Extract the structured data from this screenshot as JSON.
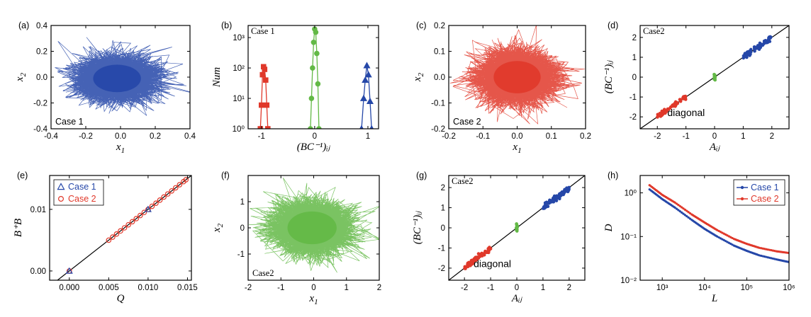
{
  "colors": {
    "blue": "#2547a8",
    "red": "#e0382a",
    "green": "#63b946",
    "axis": "#000000"
  },
  "chart_data": [
    {
      "id": "a",
      "type": "scatter",
      "render": "cloud",
      "color": "blue",
      "panel_label": "(a)",
      "case_label": "Case 1",
      "xlabel": "x",
      "xlabel_sub": "1",
      "ylabel": "x",
      "ylabel_sub": "2",
      "xlim": [
        -0.4,
        0.4
      ],
      "ylim": [
        -0.4,
        0.4
      ],
      "xticks": [
        -0.4,
        -0.2,
        0.0,
        0.2,
        0.4
      ],
      "xtick_labels": [
        "-0.4",
        "-0.2",
        "0.0",
        "0.2",
        "0.4"
      ],
      "yticks": [
        -0.4,
        -0.2,
        0.0,
        0.2,
        0.4
      ],
      "ytick_labels": [
        "-0.4",
        "-0.2",
        "0.0",
        "0.2",
        "0.4"
      ],
      "cloud": {
        "cx": -0.02,
        "cy": -0.01,
        "sx": 0.11,
        "sy": 0.085,
        "n": 4000,
        "seed": 11
      }
    },
    {
      "id": "b",
      "type": "line",
      "render": "series",
      "panel_label": "(b)",
      "case_label": "Case 1",
      "xlabel": "(BC⁻¹)ᵢⱼ",
      "ylabel": "Num",
      "yscale": "log",
      "xlim": [
        -1.25,
        1.2
      ],
      "ylim": [
        1,
        2500
      ],
      "xticks": [
        -1,
        0,
        1
      ],
      "xtick_labels": [
        "-1",
        "0",
        "1"
      ],
      "yticks": [
        1,
        10,
        100,
        1000
      ],
      "ytick_labels": [
        "10⁰",
        "10¹",
        "10²",
        "10³"
      ],
      "series": [
        {
          "name": "negative",
          "color": "red",
          "marker": "square",
          "x": [
            -1.02,
            -1.0,
            -0.98,
            -0.96,
            -0.94,
            -0.92,
            -0.9,
            -0.88
          ],
          "y": [
            1,
            6,
            60,
            110,
            90,
            40,
            6,
            1
          ]
        },
        {
          "name": "zero",
          "color": "green",
          "marker": "circle",
          "x": [
            -0.08,
            -0.06,
            -0.04,
            -0.02,
            0.0,
            0.02,
            0.04,
            0.06,
            0.08
          ],
          "y": [
            1,
            10,
            100,
            700,
            1900,
            1500,
            300,
            30,
            1
          ]
        },
        {
          "name": "positive",
          "color": "blue",
          "marker": "triangle",
          "x": [
            0.88,
            0.92,
            0.95,
            0.98,
            1.01,
            1.04,
            1.07
          ],
          "y": [
            1,
            10,
            40,
            120,
            60,
            8,
            1
          ]
        }
      ]
    },
    {
      "id": "c",
      "type": "scatter",
      "render": "cloud",
      "color": "red",
      "panel_label": "(c)",
      "case_label": "Case 2",
      "xlabel": "x",
      "xlabel_sub": "1",
      "ylabel": "x",
      "ylabel_sub": "2",
      "xlim": [
        -0.2,
        0.2
      ],
      "ylim": [
        -0.2,
        0.2
      ],
      "xticks": [
        -0.2,
        -0.1,
        0.0,
        0.1,
        0.2
      ],
      "xtick_labels": [
        "-0.2",
        "-0.1",
        "0.0",
        "0.1",
        "0.2"
      ],
      "yticks": [
        -0.2,
        -0.1,
        0.0,
        0.1,
        0.2
      ],
      "ytick_labels": [
        "-0.2",
        "-0.1",
        "0.0",
        "0.1",
        "0.2"
      ],
      "cloud": {
        "cx": 0.0,
        "cy": 0.0,
        "sx": 0.055,
        "sy": 0.05,
        "n": 4000,
        "seed": 22
      }
    },
    {
      "id": "d",
      "type": "scatter",
      "render": "diag",
      "panel_label": "(d)",
      "case_label": "Case2",
      "annotation": "diagonal",
      "xlabel": "Aᵢⱼ",
      "ylabel": "(BC⁻¹)ᵢⱼ",
      "xlim": [
        -2.6,
        2.6
      ],
      "ylim": [
        -2.6,
        2.6
      ],
      "xticks": [
        -2,
        -1,
        0,
        1,
        2
      ],
      "xtick_labels": [
        "-2",
        "-1",
        "0",
        "1",
        "2"
      ],
      "yticks": [
        -2,
        -1,
        0,
        1,
        2
      ],
      "ytick_labels": [
        "-2",
        "-1",
        "0",
        "1",
        "2"
      ],
      "line": [
        [
          -2.6,
          -2.6
        ],
        [
          2.6,
          2.6
        ]
      ],
      "series": [
        {
          "name": "negative",
          "color": "red",
          "x": [
            -2.0,
            -1.0
          ],
          "spread": 0.06,
          "n": 70,
          "seed": 31
        },
        {
          "name": "zero",
          "color": "green",
          "x": [
            0.0,
            0.0
          ],
          "yrange": [
            -0.15,
            0.15
          ],
          "n": 14,
          "seed": 32
        },
        {
          "name": "positive",
          "color": "blue",
          "x": [
            1.0,
            2.0
          ],
          "spread": 0.07,
          "n": 70,
          "seed": 33
        }
      ]
    },
    {
      "id": "e",
      "type": "scatter",
      "render": "linefit",
      "panel_label": "(e)",
      "xlabel": "Q",
      "ylabel": "B⁺B",
      "xlim": [
        -0.0025,
        0.0155
      ],
      "ylim": [
        -0.0015,
        0.0155
      ],
      "xticks": [
        0.0,
        0.005,
        0.01,
        0.015
      ],
      "xtick_labels": [
        "0.000",
        "0.005",
        "0.010",
        "0.015"
      ],
      "yticks": [
        0.0,
        0.01
      ],
      "ytick_labels": [
        "0.00",
        "0.01"
      ],
      "line": [
        [
          -0.0025,
          -0.0025
        ],
        [
          0.0155,
          0.0155
        ]
      ],
      "legend": [
        "Case 1",
        "Case 2"
      ],
      "case1": {
        "color": "blue",
        "marker": "triangle",
        "x": [
          0.0,
          0.01
        ],
        "y": [
          0.0,
          0.01
        ]
      },
      "case2": {
        "color": "red",
        "marker": "circle",
        "x": [
          0.0,
          0.005,
          0.0055,
          0.006,
          0.0065,
          0.007,
          0.0075,
          0.008,
          0.0085,
          0.009,
          0.0095,
          0.01,
          0.0105,
          0.011,
          0.0115,
          0.012,
          0.0125,
          0.013,
          0.0135,
          0.014,
          0.0145,
          0.0148
        ]
      }
    },
    {
      "id": "f",
      "type": "scatter",
      "render": "cloud",
      "color": "green",
      "panel_label": "(f)",
      "case_label": "Case2",
      "xlabel": "x",
      "xlabel_sub": "1",
      "ylabel": "x",
      "ylabel_sub": "2",
      "xlim": [
        -2,
        2
      ],
      "ylim": [
        -2,
        2
      ],
      "xticks": [
        -2,
        -1,
        0,
        1,
        2
      ],
      "xtick_labels": [
        "-2",
        "-1",
        "0",
        "1",
        "2"
      ],
      "yticks": [
        -1,
        0,
        1
      ],
      "ytick_labels": [
        "-1",
        "0",
        "1"
      ],
      "cloud": {
        "cx": -0.05,
        "cy": 0.0,
        "sx": 0.6,
        "sy": 0.5,
        "n": 4000,
        "seed": 44
      }
    },
    {
      "id": "g",
      "type": "scatter",
      "render": "diag",
      "panel_label": "(g)",
      "case_label": "Case2",
      "annotation": "diagonal",
      "xlabel": "Aᵢⱼ",
      "ylabel": "(BC⁻¹)ᵢⱼ",
      "xlim": [
        -2.6,
        2.6
      ],
      "ylim": [
        -2.6,
        2.6
      ],
      "xticks": [
        -2,
        -1,
        0,
        1,
        2
      ],
      "xtick_labels": [
        "-2",
        "-1",
        "0",
        "1",
        "2"
      ],
      "yticks": [
        -2,
        -1,
        0,
        1,
        2
      ],
      "ytick_labels": [
        "-2",
        "-1",
        "0",
        "1",
        "2"
      ],
      "line": [
        [
          -2.6,
          -2.6
        ],
        [
          2.6,
          2.6
        ]
      ],
      "series": [
        {
          "name": "negative",
          "color": "red",
          "x": [
            -2.0,
            -1.0
          ],
          "spread": 0.06,
          "n": 70,
          "seed": 51
        },
        {
          "name": "zero",
          "color": "green",
          "x": [
            0.0,
            0.0
          ],
          "yrange": [
            -0.2,
            0.2
          ],
          "n": 14,
          "seed": 52
        },
        {
          "name": "positive",
          "color": "blue",
          "x": [
            1.0,
            2.0
          ],
          "spread": 0.07,
          "n": 70,
          "seed": 53
        }
      ]
    },
    {
      "id": "h",
      "type": "line",
      "render": "loglog",
      "panel_label": "(h)",
      "xlabel": "L",
      "ylabel": "D",
      "xscale": "log",
      "yscale": "log",
      "xlim": [
        300,
        1000000
      ],
      "ylim": [
        0.01,
        2.5
      ],
      "xticks": [
        1000,
        10000,
        100000,
        1000000
      ],
      "xtick_labels": [
        "10³",
        "10⁴",
        "10⁵",
        "10⁶"
      ],
      "yticks": [
        0.01,
        0.1,
        1
      ],
      "ytick_labels": [
        "10⁻²",
        "10⁻¹",
        "10⁰"
      ],
      "legend": [
        "Case 1",
        "Case 2"
      ],
      "series": [
        {
          "name": "Case 1",
          "color": "blue",
          "x": [
            500,
            1000,
            2000,
            5000,
            10000,
            20000,
            50000,
            100000,
            200000,
            500000,
            1000000
          ],
          "y": [
            1.2,
            0.72,
            0.46,
            0.24,
            0.15,
            0.1,
            0.062,
            0.047,
            0.037,
            0.03,
            0.026
          ]
        },
        {
          "name": "Case 2",
          "color": "red",
          "x": [
            500,
            1000,
            2000,
            5000,
            10000,
            20000,
            50000,
            100000,
            200000,
            500000,
            1000000
          ],
          "y": [
            1.5,
            0.9,
            0.6,
            0.32,
            0.21,
            0.14,
            0.088,
            0.068,
            0.055,
            0.046,
            0.042
          ]
        }
      ]
    }
  ]
}
